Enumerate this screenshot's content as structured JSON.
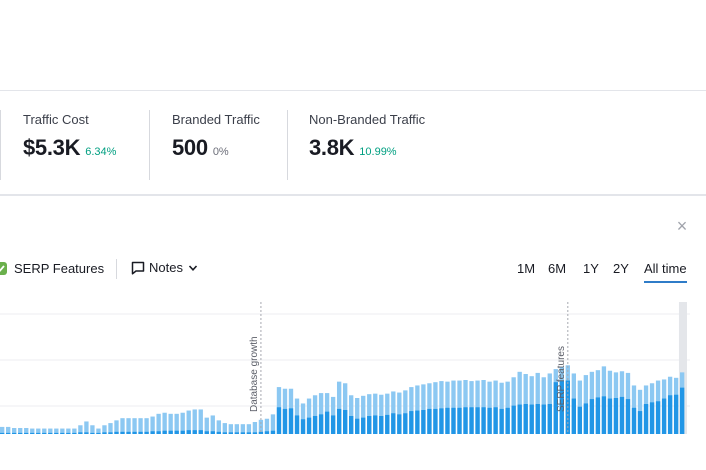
{
  "metrics": [
    {
      "label": "Traffic Cost",
      "value": "$5.3K",
      "change": "6.34%",
      "tone": "positive"
    },
    {
      "label": "Branded Traffic",
      "value": "500",
      "change": "0%",
      "tone": "neutral"
    },
    {
      "label": "Non-Branded Traffic",
      "value": "3.8K",
      "change": "10.99%",
      "tone": "positive"
    }
  ],
  "toolbar": {
    "serp_features_label": "SERP Features",
    "notes_label": "Notes",
    "close_symbol": "×"
  },
  "time_ranges": [
    {
      "label": "1M",
      "active": false
    },
    {
      "label": "6M",
      "active": false
    },
    {
      "label": "1Y",
      "active": false
    },
    {
      "label": "2Y",
      "active": false
    },
    {
      "label": "All time",
      "active": true
    }
  ],
  "colors": {
    "bar_light": "#8cc8f2",
    "bar_dark": "#2196e6",
    "check": "#6ab04c",
    "positive": "#009f81"
  },
  "icons": [
    "check-icon",
    "note-icon",
    "chevron-down-icon",
    "close-icon"
  ],
  "chart_data": {
    "type": "bar",
    "stacked": true,
    "annotations": [
      {
        "label": "Database growth",
        "bar_index": 43
      },
      {
        "label": "SERP features",
        "bar_index": 94
      }
    ],
    "highlighted_bar_index": 113,
    "series": [
      {
        "name": "non-branded",
        "values": [
          1.3,
          1.3,
          1.1,
          1.1,
          1.1,
          1.0,
          1.0,
          1.0,
          1.0,
          1.0,
          1.0,
          1.0,
          1.0,
          1.6,
          2.3,
          1.6,
          1.0,
          1.6,
          2.0,
          2.5,
          2.9,
          2.9,
          2.9,
          2.9,
          2.9,
          3.2,
          3.7,
          3.9,
          3.7,
          3.7,
          3.9,
          4.3,
          4.5,
          4.5,
          3.0,
          3.4,
          2.5,
          2.0,
          1.8,
          1.8,
          1.8,
          1.8,
          2.2,
          2.6,
          2.8,
          3.6,
          8.6,
          8.3,
          8.3,
          6.5,
          5.6,
          6.5,
          7.1,
          7.5,
          7.5,
          6.8,
          9.6,
          9.3,
          7.1,
          6.6,
          7.0,
          7.3,
          7.4,
          7.2,
          7.4,
          7.8,
          7.6,
          8.0,
          8.6,
          8.9,
          9.1,
          9.3,
          9.5,
          9.7,
          9.6,
          9.8,
          9.8,
          9.9,
          9.7,
          9.8,
          9.9,
          9.6,
          9.8,
          9.4,
          9.6,
          10.4,
          11.4,
          11.0,
          10.6,
          11.2,
          10.4,
          11.1,
          11.9,
          12.3,
          12.6,
          11.1,
          9.8,
          10.8,
          11.4,
          11.7,
          12.4,
          11.6,
          11.3,
          11.5,
          11.2,
          8.9,
          8.1,
          8.9,
          9.3,
          9.8,
          10.0,
          10.5,
          10.3,
          11.3
        ],
        "note": "series relative to chart max 22"
      },
      {
        "name": "branded",
        "values": [
          0.2,
          0.2,
          0.2,
          0.2,
          0.2,
          0.2,
          0.2,
          0.2,
          0.2,
          0.2,
          0.2,
          0.2,
          0.2,
          0.3,
          0.3,
          0.2,
          0.2,
          0.3,
          0.3,
          0.4,
          0.4,
          0.4,
          0.4,
          0.4,
          0.4,
          0.5,
          0.5,
          0.6,
          0.6,
          0.6,
          0.6,
          0.7,
          0.7,
          0.7,
          0.5,
          0.5,
          0.4,
          0.3,
          0.3,
          0.3,
          0.3,
          0.3,
          0.3,
          0.4,
          0.5,
          0.6,
          4.9,
          4.6,
          4.7,
          3.4,
          2.7,
          3.0,
          3.3,
          3.6,
          4.1,
          3.4,
          4.6,
          4.4,
          3.3,
          2.8,
          3.0,
          3.3,
          3.4,
          3.3,
          3.5,
          3.8,
          3.6,
          3.8,
          4.2,
          4.3,
          4.4,
          4.6,
          4.6,
          4.7,
          4.8,
          4.8,
          4.8,
          4.9,
          4.9,
          4.9,
          4.9,
          4.8,
          4.9,
          4.6,
          4.8,
          5.2,
          5.4,
          5.5,
          5.4,
          5.5,
          5.4,
          5.5,
          9.5,
          9.7,
          9.8,
          6.5,
          5.0,
          5.6,
          6.4,
          6.7,
          6.9,
          6.5,
          6.6,
          6.8,
          6.4,
          4.8,
          4.2,
          5.5,
          5.8,
          6.0,
          6.5,
          7.1,
          7.2,
          8.5
        ]
      }
    ],
    "ylim": [
      0,
      22
    ]
  }
}
